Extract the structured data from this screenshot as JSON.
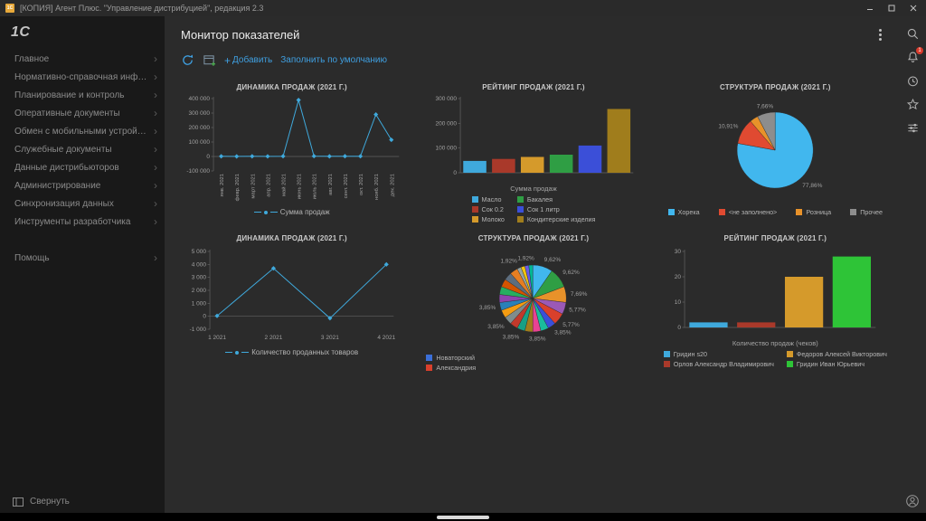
{
  "titlebar": {
    "app_icon_text": "1С",
    "title": "[КОПИЯ] Агент Плюс. \"Управление дистрибуцией\", редакция 2.3"
  },
  "sidebar": {
    "logo_text": "1С",
    "items": [
      "Главное",
      "Нормативно-справочная информация",
      "Планирование и контроль",
      "Оперативные документы",
      "Обмен с мобильными устройствами",
      "Служебные документы",
      "Данные дистрибьюторов",
      "Администрирование",
      "Синхронизация данных",
      "Инструменты разработчика",
      "Помощь"
    ],
    "collapse_label": "Свернуть"
  },
  "rightbar": {
    "notifications_badge": "1"
  },
  "main": {
    "title": "Монитор показателей",
    "toolbar": {
      "add_label": "Добавить",
      "fill_default_label": "Заполнить по умолчанию"
    }
  },
  "colors": {
    "accent_blue": "#3f9fe0",
    "series_line": "#3fa9dc"
  },
  "chart_data": [
    {
      "type": "line",
      "title": "ДИНАМИКА ПРОДАЖ (2021 Г.)",
      "x": [
        "янв. 2021",
        "февр. 2021",
        "март 2021",
        "апр. 2021",
        "май 2021",
        "июнь 2021",
        "июль 2021",
        "авг. 2021",
        "сент. 2021",
        "окт. 2021",
        "нояб. 2021",
        "дек. 2021"
      ],
      "series": [
        {
          "name": "Сумма продаж",
          "color": "#3fa9dc",
          "values": [
            1500,
            800,
            1200,
            900,
            1800,
            390000,
            2500,
            1200,
            1800,
            1500,
            290000,
            115000
          ]
        }
      ],
      "ylim": [
        -100000,
        400000
      ],
      "yticks": [
        -100000,
        0,
        100000,
        200000,
        300000,
        400000
      ]
    },
    {
      "type": "bar",
      "title": "РЕЙТИНГ ПРОДАЖ (2021 Г.)",
      "xlabel": "Сумма продаж",
      "ylim": [
        0,
        300000
      ],
      "yticks": [
        0,
        100000,
        200000,
        300000
      ],
      "bars": [
        {
          "label": "Масло",
          "value": 48000,
          "color": "#3fa9dc"
        },
        {
          "label": "Сок 0.2",
          "value": 56000,
          "color": "#a9392a"
        },
        {
          "label": "Молоко",
          "value": 64000,
          "color": "#d59a2b"
        },
        {
          "label": "Бакалея",
          "value": 73000,
          "color": "#2f9e44"
        },
        {
          "label": "Сок 1 литр",
          "value": 110000,
          "color": "#3b4fd8"
        },
        {
          "label": "Кондитерские изделия",
          "value": 258000,
          "color": "#a07d1c"
        }
      ],
      "legend_rows": 3
    },
    {
      "type": "pie",
      "title": "СТРУКТУРА ПРОДАЖ (2021 Г.)",
      "slices": [
        {
          "label": "Хорека",
          "value": 77.86,
          "color": "#41b7ee",
          "show_label": "77,86%"
        },
        {
          "label": "<не заполнено>",
          "value": 10.91,
          "color": "#e04a31",
          "show_label": "10,91%"
        },
        {
          "label": "Розница",
          "value": 3.57,
          "color": "#e8922a",
          "show_label": ""
        },
        {
          "label": "Прочее",
          "value": 7.66,
          "color": "#8d8d8d",
          "show_label": "7,66%"
        }
      ],
      "legend_type": "row"
    },
    {
      "type": "line",
      "title": "ДИНАМИКА ПРОДАЖ (2021 Г.)",
      "x": [
        "1 2021",
        "2 2021",
        "3 2021",
        "4 2021"
      ],
      "series": [
        {
          "name": "Количество проданных товаров",
          "color": "#3fa9dc",
          "values": [
            30,
            3700,
            -150,
            4000
          ]
        }
      ],
      "ylim": [
        -1000,
        5000
      ],
      "yticks": [
        -1000,
        0,
        1000,
        2000,
        3000,
        4000,
        5000
      ]
    },
    {
      "type": "pie",
      "title": "СТРУКТУРА ПРОДАЖ (2021 Г.)",
      "slices": [
        {
          "value": 9.62,
          "color": "#41b7ee",
          "show_label": "9,62%"
        },
        {
          "value": 9.62,
          "color": "#2f9e44",
          "show_label": "9,62%"
        },
        {
          "value": 7.69,
          "color": "#e8922a",
          "show_label": "7,69%"
        },
        {
          "value": 5.77,
          "color": "#9b59b6",
          "show_label": "5,77%"
        },
        {
          "value": 5.77,
          "color": "#d9402c",
          "show_label": "5,77%"
        },
        {
          "value": 3.85,
          "color": "#3b4fd8",
          "show_label": "3,85%"
        },
        {
          "value": 3.85,
          "color": "#1abc9c",
          "show_label": ""
        },
        {
          "value": 3.85,
          "color": "#e84393",
          "show_label": "3,85%"
        },
        {
          "value": 3.85,
          "color": "#a07d1c",
          "show_label": ""
        },
        {
          "value": 3.85,
          "color": "#16a085",
          "show_label": "3,85%"
        },
        {
          "value": 3.85,
          "color": "#c0392b",
          "show_label": ""
        },
        {
          "value": 3.85,
          "color": "#7f8c8d",
          "show_label": "3,85%"
        },
        {
          "value": 3.85,
          "color": "#f39c12",
          "show_label": ""
        },
        {
          "value": 3.85,
          "color": "#2980b9",
          "show_label": "3,85%"
        },
        {
          "value": 3.85,
          "color": "#8e44ad",
          "show_label": ""
        },
        {
          "value": 3.85,
          "color": "#27ae60",
          "show_label": ""
        },
        {
          "value": 3.85,
          "color": "#d35400",
          "show_label": ""
        },
        {
          "value": 3.85,
          "color": "#5d6d7e",
          "show_label": ""
        },
        {
          "value": 3.85,
          "color": "#e67e22",
          "show_label": ""
        },
        {
          "value": 1.92,
          "color": "#95a5a6",
          "show_label": "1,92%"
        },
        {
          "value": 1.92,
          "color": "#f1c40f",
          "show_label": ""
        },
        {
          "value": 1.92,
          "color": "#6c5ce7",
          "show_label": "1,92%"
        },
        {
          "value": 1.92,
          "color": "#00b894",
          "show_label": ""
        }
      ],
      "legend_items": [
        {
          "label": "Новаторский",
          "color": "#3b6fd8"
        },
        {
          "label": "Александрия",
          "color": "#d9402c"
        }
      ],
      "legend_type": "stack"
    },
    {
      "type": "bar",
      "title": "РЕЙТИНГ ПРОДАЖ (2021 Г.)",
      "xlabel": "Количество продаж (чеков)",
      "ylim": [
        0,
        30
      ],
      "yticks": [
        0,
        10,
        20,
        30
      ],
      "bars": [
        {
          "label": "Гридин s20",
          "value": 2,
          "color": "#3fa9dc"
        },
        {
          "label": "Орлов Александр Владимирович",
          "value": 2,
          "color": "#a9392a"
        },
        {
          "label": "Федоров Алексей Викторович",
          "value": 20,
          "color": "#d59a2b"
        },
        {
          "label": "Гридин Иван Юрьевич",
          "value": 28,
          "color": "#2ec437"
        }
      ],
      "legend_rows": 2
    }
  ]
}
